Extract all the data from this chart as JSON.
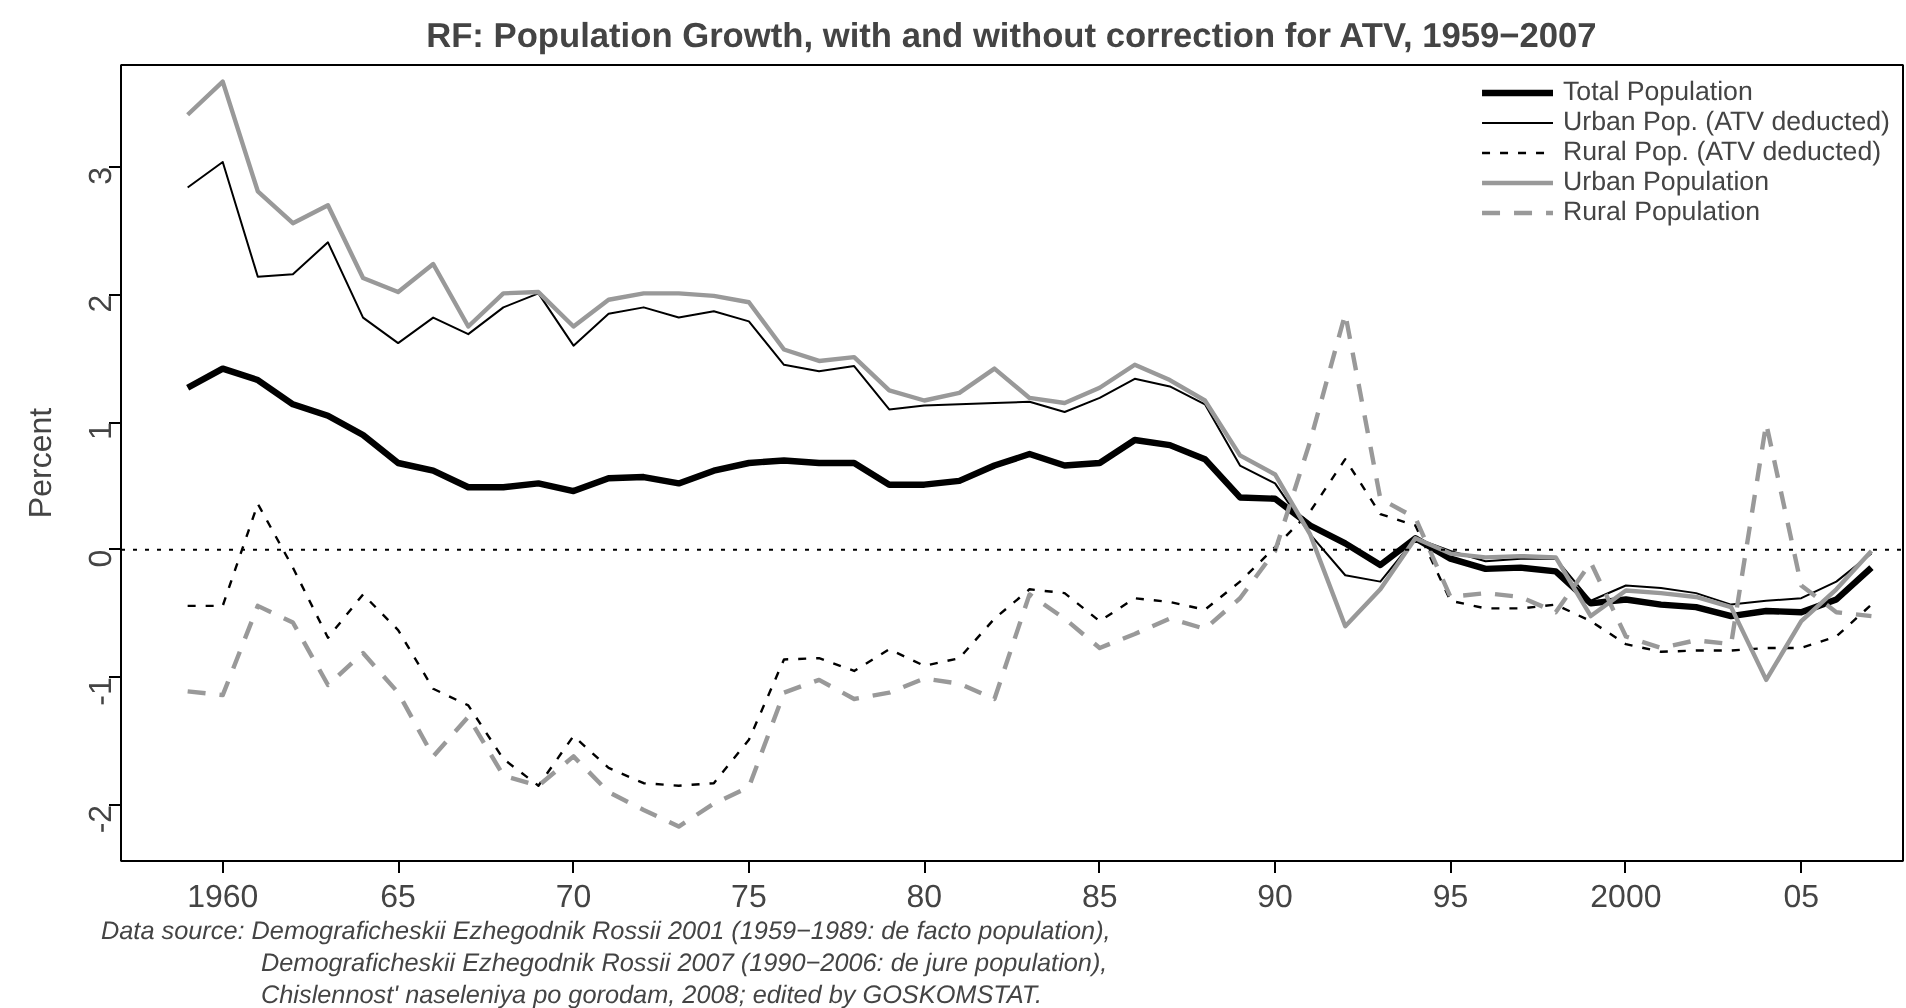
{
  "chart_data": {
    "type": "line",
    "title": "RF: Population Growth, with and without correction for ATV, 1959−2007",
    "ylabel": "Percent",
    "x": [
      1959,
      1960,
      1961,
      1962,
      1963,
      1964,
      1965,
      1966,
      1967,
      1968,
      1969,
      1970,
      1971,
      1972,
      1973,
      1974,
      1975,
      1976,
      1977,
      1978,
      1979,
      1980,
      1981,
      1982,
      1983,
      1984,
      1985,
      1986,
      1987,
      1988,
      1989,
      1990,
      1991,
      1992,
      1993,
      1994,
      1995,
      1996,
      1997,
      1998,
      1999,
      2000,
      2001,
      2002,
      2003,
      2004,
      2005,
      2006,
      2007
    ],
    "series": [
      {
        "name": "Total Population",
        "color": "#000000",
        "line_style": "solid",
        "values": [
          1.27,
          1.42,
          1.33,
          1.14,
          1.05,
          0.9,
          0.68,
          0.62,
          0.49,
          0.49,
          0.52,
          0.46,
          0.56,
          0.57,
          0.52,
          0.62,
          0.68,
          0.7,
          0.68,
          0.68,
          0.51,
          0.51,
          0.54,
          0.66,
          0.75,
          0.66,
          0.68,
          0.86,
          0.82,
          0.71,
          0.41,
          0.4,
          0.19,
          0.05,
          -0.12,
          0.09,
          -0.07,
          -0.15,
          -0.14,
          -0.17,
          -0.42,
          -0.39,
          -0.43,
          -0.45,
          -0.52,
          -0.48,
          -0.49,
          -0.39,
          -0.14
        ]
      },
      {
        "name": "Urban Pop. (ATV deducted)",
        "color": "#000000",
        "line_style": "solid",
        "values": [
          2.84,
          3.04,
          2.14,
          2.16,
          2.41,
          1.82,
          1.62,
          1.82,
          1.69,
          1.9,
          2.01,
          1.6,
          1.85,
          1.9,
          1.82,
          1.87,
          1.79,
          1.45,
          1.4,
          1.44,
          1.1,
          1.13,
          1.14,
          1.15,
          1.16,
          1.08,
          1.19,
          1.34,
          1.28,
          1.14,
          0.66,
          0.52,
          0.12,
          -0.2,
          -0.25,
          0.09,
          -0.01,
          -0.09,
          -0.07,
          -0.07,
          -0.4,
          -0.28,
          -0.3,
          -0.34,
          -0.43,
          -0.4,
          -0.38,
          -0.25,
          -0.03
        ]
      },
      {
        "name": "Rural Pop. (ATV deducted)",
        "color": "#000000",
        "line_style": "dashed",
        "values": [
          -0.44,
          -0.44,
          0.36,
          -0.14,
          -0.69,
          -0.35,
          -0.63,
          -1.09,
          -1.22,
          -1.64,
          -1.85,
          -1.46,
          -1.71,
          -1.83,
          -1.85,
          -1.83,
          -1.49,
          -0.86,
          -0.85,
          -0.95,
          -0.78,
          -0.91,
          -0.85,
          -0.54,
          -0.31,
          -0.34,
          -0.56,
          -0.38,
          -0.41,
          -0.47,
          -0.25,
          0.02,
          0.3,
          0.71,
          0.28,
          0.19,
          -0.4,
          -0.46,
          -0.46,
          -0.43,
          -0.56,
          -0.74,
          -0.8,
          -0.79,
          -0.79,
          -0.77,
          -0.77,
          -0.68,
          -0.43
        ]
      },
      {
        "name": "Urban Population",
        "color": "#999999",
        "line_style": "solid",
        "values": [
          3.41,
          3.67,
          2.81,
          2.56,
          2.7,
          2.13,
          2.02,
          2.24,
          1.75,
          2.01,
          2.02,
          1.75,
          1.96,
          2.01,
          2.01,
          1.99,
          1.94,
          1.57,
          1.48,
          1.51,
          1.25,
          1.17,
          1.23,
          1.42,
          1.19,
          1.15,
          1.27,
          1.45,
          1.33,
          1.17,
          0.74,
          0.59,
          0.12,
          -0.6,
          -0.31,
          0.09,
          -0.03,
          -0.06,
          -0.05,
          -0.06,
          -0.52,
          -0.32,
          -0.34,
          -0.37,
          -0.45,
          -1.02,
          -0.56,
          -0.31,
          -0.01
        ]
      },
      {
        "name": "Rural Population",
        "color": "#999999",
        "line_style": "dashed",
        "values": [
          -1.11,
          -1.14,
          -0.44,
          -0.57,
          -1.06,
          -0.81,
          -1.12,
          -1.62,
          -1.31,
          -1.77,
          -1.85,
          -1.62,
          -1.9,
          -2.04,
          -2.17,
          -1.99,
          -1.86,
          -1.12,
          -1.02,
          -1.17,
          -1.12,
          -1.01,
          -1.05,
          -1.17,
          -0.35,
          -0.54,
          -0.77,
          -0.66,
          -0.54,
          -0.62,
          -0.38,
          -0.01,
          0.85,
          1.85,
          0.4,
          0.25,
          -0.37,
          -0.34,
          -0.37,
          -0.49,
          -0.1,
          -0.68,
          -0.77,
          -0.71,
          -0.74,
          0.99,
          -0.28,
          -0.49,
          -0.52
        ]
      }
    ],
    "xlim": [
      1957.1,
      2007.9
    ],
    "ylim": [
      -2.44,
      3.8
    ],
    "xticks": [
      1960,
      {
        "value": 1965,
        "label": "65"
      },
      {
        "value": 1970,
        "label": "70"
      },
      {
        "value": 1975,
        "label": "75"
      },
      {
        "value": 1980,
        "label": "80"
      },
      {
        "value": 1985,
        "label": "85"
      },
      {
        "value": 1990,
        "label": "90"
      },
      {
        "value": 1995,
        "label": "95"
      },
      2000,
      {
        "value": 2005,
        "label": "05"
      }
    ],
    "yticks": [
      -2,
      -1,
      0,
      1,
      2,
      3
    ],
    "ref_lines": [
      {
        "axis": "y",
        "value": 0,
        "line_style": "dotted",
        "color": "#000000"
      }
    ],
    "grid": false,
    "legend": "top right",
    "marker": "none",
    "annotations": [
      "Data source: Demograficheskii Ezhegodnik Rossii 2001 (1959−1989: de facto population),",
      "Demograficheskii Ezhegodnik Rossii 2007 (1990−2006: de jure population),",
      "Chislennost' naseleniya po gorodam, 2008; edited by GOSKOMSTAT."
    ]
  }
}
